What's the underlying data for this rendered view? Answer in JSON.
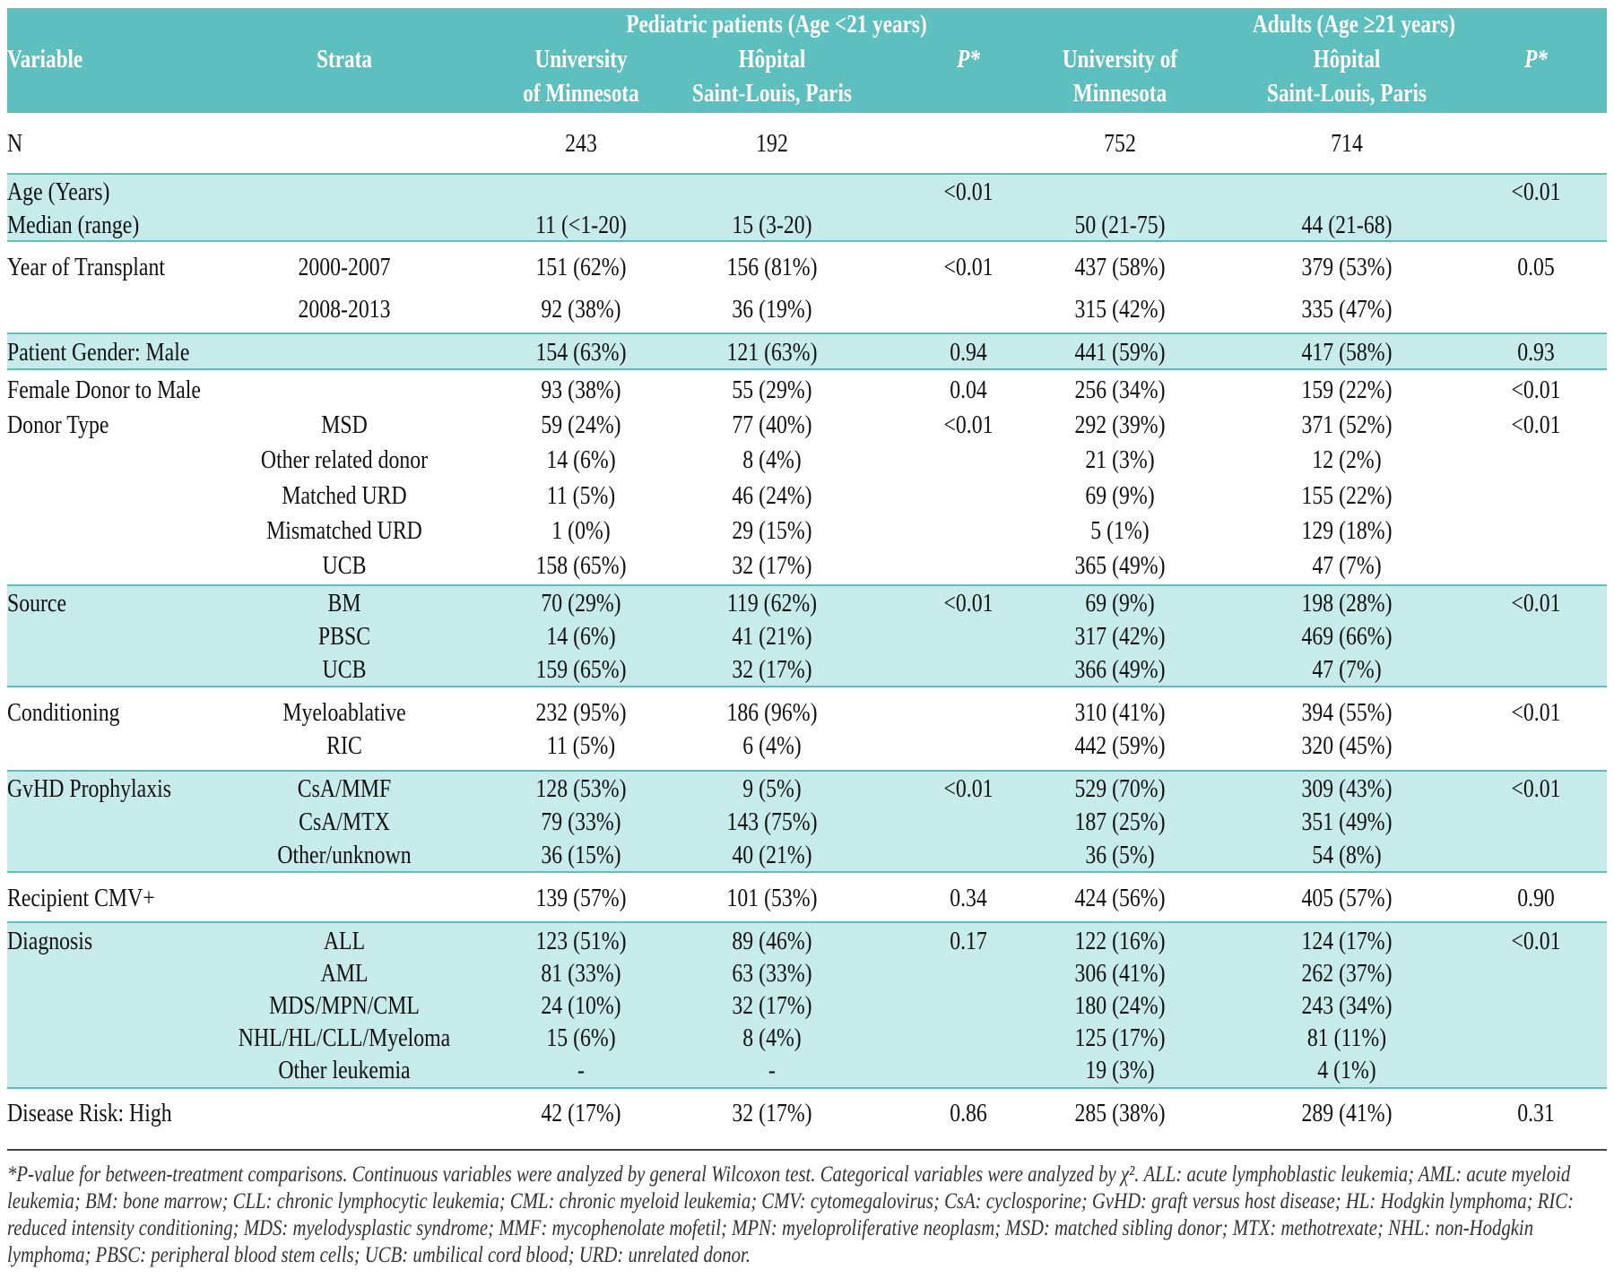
{
  "colors": {
    "header": "#5ebfbf",
    "shaded": "#c7eaea"
  },
  "header": {
    "group_pediatric": "Pediatric patients (Age <21 years)",
    "group_adults": "Adults (Age ≥21 years)",
    "variable": "Variable",
    "strata": "Strata",
    "ped_umn": [
      "University",
      "of Minnesota"
    ],
    "ped_hsl": [
      "Hôpital",
      "Saint-Louis, Paris"
    ],
    "ped_p": "P*",
    "adult_umn": [
      "University of",
      "Minnesota"
    ],
    "adult_hsl": [
      "Hôpital",
      "Saint-Louis, Paris"
    ],
    "adult_p": "P*"
  },
  "groups": [
    {
      "shaded": false,
      "rows": [
        {
          "variable": "N",
          "strata": "",
          "values": [
            "243",
            "192",
            "",
            "752",
            "714",
            ""
          ]
        }
      ]
    },
    {
      "shaded": true,
      "rows": [
        {
          "variable": "Age (Years)",
          "strata": "",
          "values": [
            "",
            "",
            "<0.01",
            "",
            "",
            "<0.01"
          ]
        },
        {
          "variable": "Median (range)",
          "strata": "",
          "values": [
            "11 (<1-20)",
            "15 (3-20)",
            "",
            "50 (21-75)",
            "44 (21-68)",
            ""
          ]
        }
      ]
    },
    {
      "shaded": false,
      "rows": [
        {
          "variable": "Year of Transplant",
          "strata": "2000-2007",
          "values": [
            "151 (62%)",
            "156 (81%)",
            "<0.01",
            "437 (58%)",
            "379 (53%)",
            "0.05"
          ]
        },
        {
          "variable": "",
          "strata": "2008-2013",
          "values": [
            "92 (38%)",
            "36 (19%)",
            "",
            "315 (42%)",
            "335 (47%)",
            ""
          ]
        }
      ]
    },
    {
      "shaded": true,
      "rows": [
        {
          "variable": "Patient Gender: Male",
          "strata": "",
          "values": [
            "154 (63%)",
            "121 (63%)",
            "0.94",
            "441 (59%)",
            "417 (58%)",
            "0.93"
          ]
        }
      ]
    },
    {
      "shaded": false,
      "rows": [
        {
          "variable": "Female Donor to Male",
          "strata": "",
          "values": [
            "93 (38%)",
            "55 (29%)",
            "0.04",
            "256 (34%)",
            "159 (22%)",
            "<0.01"
          ]
        },
        {
          "variable": "Donor Type",
          "strata": "MSD",
          "values": [
            "59 (24%)",
            "77 (40%)",
            "<0.01",
            "292 (39%)",
            "371 (52%)",
            "<0.01"
          ]
        },
        {
          "variable": "",
          "strata": "Other related donor",
          "values": [
            "14 (6%)",
            "8 (4%)",
            "",
            "21 (3%)",
            "12 (2%)",
            ""
          ]
        },
        {
          "variable": "",
          "strata": "Matched URD",
          "values": [
            "11 (5%)",
            "46 (24%)",
            "",
            "69 (9%)",
            "155 (22%)",
            ""
          ]
        },
        {
          "variable": "",
          "strata": "Mismatched URD",
          "values": [
            "1 (0%)",
            "29 (15%)",
            "",
            "5 (1%)",
            "129 (18%)",
            ""
          ]
        },
        {
          "variable": "",
          "strata": "UCB",
          "values": [
            "158 (65%)",
            "32 (17%)",
            "",
            "365 (49%)",
            "47 (7%)",
            ""
          ]
        }
      ]
    },
    {
      "shaded": true,
      "rows": [
        {
          "variable": "Source",
          "strata": "BM",
          "values": [
            "70 (29%)",
            "119 (62%)",
            "<0.01",
            "69 (9%)",
            "198 (28%)",
            "<0.01"
          ]
        },
        {
          "variable": "",
          "strata": "PBSC",
          "values": [
            "14 (6%)",
            "41 (21%)",
            "",
            "317 (42%)",
            "469 (66%)",
            ""
          ]
        },
        {
          "variable": "",
          "strata": "UCB",
          "values": [
            "159 (65%)",
            "32 (17%)",
            "",
            "366 (49%)",
            "47 (7%)",
            ""
          ]
        }
      ]
    },
    {
      "shaded": false,
      "rows": [
        {
          "variable": "Conditioning",
          "strata": "Myeloablative",
          "values": [
            "232 (95%)",
            "186 (96%)",
            "",
            "310 (41%)",
            "394 (55%)",
            "<0.01"
          ]
        },
        {
          "variable": "",
          "strata": "RIC",
          "values": [
            "11 (5%)",
            "6 (4%)",
            "",
            "442 (59%)",
            "320 (45%)",
            ""
          ]
        }
      ]
    },
    {
      "shaded": true,
      "rows": [
        {
          "variable": "GvHD Prophylaxis",
          "strata": "CsA/MMF",
          "values": [
            "128 (53%)",
            "9 (5%)",
            "<0.01",
            "529 (70%)",
            "309 (43%)",
            "<0.01"
          ]
        },
        {
          "variable": "",
          "strata": "CsA/MTX",
          "values": [
            "79 (33%)",
            "143 (75%)",
            "",
            "187 (25%)",
            "351 (49%)",
            ""
          ]
        },
        {
          "variable": "",
          "strata": "Other/unknown",
          "values": [
            "36 (15%)",
            "40 (21%)",
            "",
            "36 (5%)",
            "54 (8%)",
            ""
          ]
        }
      ]
    },
    {
      "shaded": false,
      "rows": [
        {
          "variable": "Recipient CMV+",
          "strata": "",
          "values": [
            "139 (57%)",
            "101 (53%)",
            "0.34",
            "424 (56%)",
            "405 (57%)",
            "0.90"
          ]
        }
      ]
    },
    {
      "shaded": true,
      "rows": [
        {
          "variable": "Diagnosis",
          "strata": "ALL",
          "values": [
            "123 (51%)",
            "89 (46%)",
            "0.17",
            "122 (16%)",
            "124 (17%)",
            "<0.01"
          ]
        },
        {
          "variable": "",
          "strata": "AML",
          "values": [
            "81 (33%)",
            "63 (33%)",
            "",
            "306 (41%)",
            "262 (37%)",
            ""
          ]
        },
        {
          "variable": "",
          "strata": "MDS/MPN/CML",
          "values": [
            "24 (10%)",
            "32 (17%)",
            "",
            "180 (24%)",
            "243 (34%)",
            ""
          ]
        },
        {
          "variable": "",
          "strata": "NHL/HL/CLL/Myeloma",
          "values": [
            "15 (6%)",
            "8 (4%)",
            "",
            "125 (17%)",
            "81 (11%)",
            ""
          ]
        },
        {
          "variable": "",
          "strata": "Other leukemia",
          "values": [
            "-",
            "-",
            "",
            "19 (3%)",
            "4 (1%)",
            ""
          ]
        }
      ]
    },
    {
      "shaded": false,
      "rows": [
        {
          "variable": "Disease Risk: High",
          "strata": "",
          "values": [
            "42 (17%)",
            "32 (17%)",
            "0.86",
            "285 (38%)",
            "289 (41%)",
            "0.31"
          ]
        }
      ]
    }
  ],
  "footnote": "*P-value for between-treatment comparisons. Continuous variables were analyzed by general Wilcoxon test. Categorical variables were analyzed by χ². ALL: acute lymphoblastic leukemia; AML: acute myeloid leukemia; BM: bone marrow; CLL: chronic lymphocytic leukemia; CML: chronic myeloid leukemia; CMV: cytomegalovirus; CsA: cyclosporine; GvHD: graft versus host disease; HL: Hodgkin lymphoma; RIC: reduced intensity conditioning; MDS: myelodysplastic syndrome; MMF: mycophenolate mofetil; MPN: myeloproliferative neoplasm; MSD: matched sibling donor; MTX: methotrexate; NHL: non-Hodgkin lymphoma; PBSC: peripheral blood stem cells; UCB: umbilical cord blood; URD: unrelated donor."
}
